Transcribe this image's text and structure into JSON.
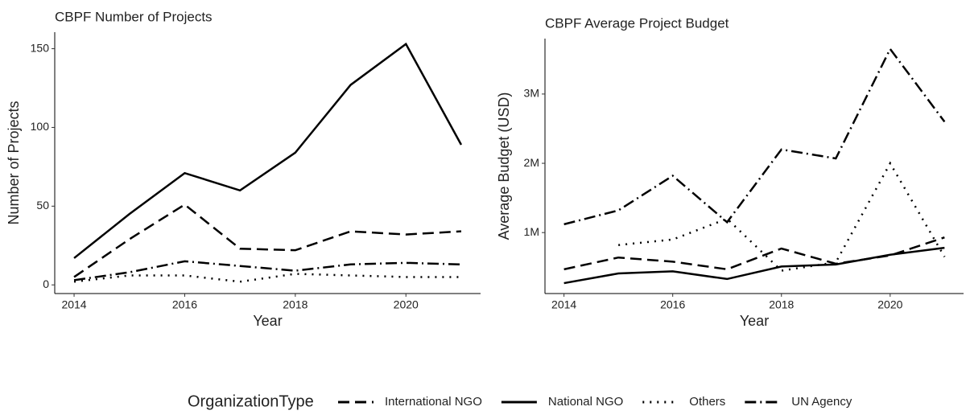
{
  "chart_data": [
    {
      "type": "line",
      "title": "CBPF Number of Projects",
      "x_label": "Year",
      "y_label": "Number of Projects",
      "x": [
        2014,
        2015,
        2016,
        2017,
        2018,
        2019,
        2020,
        2021
      ],
      "xlim": [
        2013.65,
        2021.35
      ],
      "xticks": [
        2014,
        2016,
        2018,
        2020
      ],
      "ylim": [
        -5.5,
        160.5
      ],
      "yticks": [
        0,
        50,
        100,
        150
      ],
      "series": [
        {
          "name": "International NGO",
          "color": "#000000",
          "linestyle": "dashed",
          "values": [
            5,
            29,
            51,
            23,
            22,
            34,
            32,
            34
          ]
        },
        {
          "name": "National NGO",
          "color": "#000000",
          "linestyle": "solid",
          "values": [
            17,
            45,
            71,
            60,
            84,
            127,
            153,
            89
          ]
        },
        {
          "name": "Others",
          "color": "#000000",
          "linestyle": "dotted",
          "values": [
            2,
            6,
            6,
            2,
            7,
            6,
            5,
            5
          ]
        },
        {
          "name": "UN Agency",
          "color": "#000000",
          "linestyle": "dashdot",
          "values": [
            3,
            8,
            15,
            12,
            9,
            13,
            14,
            13
          ]
        }
      ]
    },
    {
      "type": "line",
      "title": "CBPF Average Project Budget",
      "x_label": "Year",
      "y_label": "Average Budget (USD)",
      "x": [
        2014,
        2015,
        2016,
        2017,
        2018,
        2019,
        2020,
        2021
      ],
      "xlim": [
        2013.65,
        2021.35
      ],
      "xticks": [
        2014,
        2016,
        2018,
        2020
      ],
      "ylim": [
        120000,
        3800000
      ],
      "yticks": [
        {
          "value": 1000000,
          "label": "1M"
        },
        {
          "value": 2000000,
          "label": "2M"
        },
        {
          "value": 3000000,
          "label": "3M"
        }
      ],
      "series": [
        {
          "name": "International NGO",
          "color": "#000000",
          "linestyle": "dashed",
          "values": [
            470000,
            640000,
            580000,
            470000,
            770000,
            550000,
            670000,
            930000
          ]
        },
        {
          "name": "National NGO",
          "color": "#000000",
          "linestyle": "solid",
          "values": [
            270000,
            410000,
            440000,
            330000,
            510000,
            540000,
            680000,
            780000
          ]
        },
        {
          "name": "Others",
          "color": "#000000",
          "linestyle": "dotted",
          "values": [
            null,
            820000,
            900000,
            1200000,
            450000,
            570000,
            2000000,
            650000
          ]
        },
        {
          "name": "UN Agency",
          "color": "#000000",
          "linestyle": "dashdot",
          "values": [
            1120000,
            1320000,
            1820000,
            1150000,
            2200000,
            2070000,
            3650000,
            2600000
          ]
        }
      ]
    }
  ],
  "legend_title": "OrganizationType"
}
